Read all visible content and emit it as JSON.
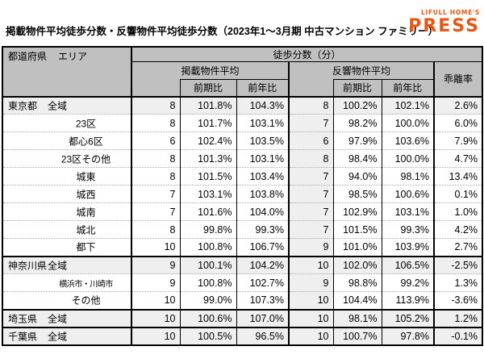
{
  "title": "掲載物件平均徒歩分数・反響物件平均徒歩分数（2023年1～3月期 中古マンション ファミリー）",
  "logo": {
    "brand": "LIFULL HOME'S",
    "press": "PRESS",
    "color": "#E95513"
  },
  "colors": {
    "header_bg": "#c0c0c0",
    "shaded_row_bg": "#efefef",
    "border": "#000000",
    "dotted_divider": "#a8a8a8",
    "brand_orange": "#E95513"
  },
  "chart_data": {
    "type": "table",
    "title": "掲載物件平均徒歩分数・反響物件平均徒歩分数（2023年1～3月期 中古マンション ファミリー）",
    "header": {
      "corner_prefecture": "都道府県",
      "corner_area": "エリア",
      "top": "徒歩分数（分）",
      "group_listed": "掲載物件平均",
      "group_response": "反響物件平均",
      "qoq": "前期比",
      "yoy": "前年比",
      "deviation": "乖離率"
    },
    "column_order": [
      "listed_avg",
      "listed_qoq",
      "listed_yoy",
      "response_avg",
      "response_qoq",
      "response_yoy",
      "deviation"
    ],
    "rows": [
      {
        "prefecture": "東京都",
        "area": "全域",
        "shaded": true,
        "groupStart": false,
        "smallArea": false,
        "values": [
          "8",
          "101.8%",
          "104.3%",
          "8",
          "100.2%",
          "102.1%",
          "2.6%"
        ]
      },
      {
        "prefecture": "",
        "area": "23区",
        "shaded": false,
        "groupStart": false,
        "smallArea": false,
        "values": [
          "8",
          "101.7%",
          "103.1%",
          "7",
          "98.2%",
          "100.0%",
          "6.0%"
        ]
      },
      {
        "prefecture": "",
        "area": "都心6区",
        "shaded": false,
        "groupStart": false,
        "smallArea": false,
        "values": [
          "6",
          "102.4%",
          "103.5%",
          "6",
          "97.9%",
          "103.6%",
          "7.9%"
        ]
      },
      {
        "prefecture": "",
        "area": "23区その他",
        "shaded": false,
        "groupStart": false,
        "smallArea": false,
        "values": [
          "8",
          "101.3%",
          "103.1%",
          "8",
          "98.4%",
          "100.0%",
          "4.7%"
        ]
      },
      {
        "prefecture": "",
        "area": "城東",
        "shaded": false,
        "groupStart": false,
        "smallArea": false,
        "values": [
          "8",
          "101.5%",
          "103.4%",
          "7",
          "94.0%",
          "98.1%",
          "13.4%"
        ]
      },
      {
        "prefecture": "",
        "area": "城西",
        "shaded": false,
        "groupStart": false,
        "smallArea": false,
        "values": [
          "7",
          "103.1%",
          "103.8%",
          "7",
          "98.5%",
          "100.6%",
          "0.1%"
        ]
      },
      {
        "prefecture": "",
        "area": "城南",
        "shaded": false,
        "groupStart": false,
        "smallArea": false,
        "values": [
          "7",
          "101.6%",
          "104.0%",
          "7",
          "102.9%",
          "103.1%",
          "1.0%"
        ]
      },
      {
        "prefecture": "",
        "area": "城北",
        "shaded": false,
        "groupStart": false,
        "smallArea": false,
        "values": [
          "8",
          "99.8%",
          "99.3%",
          "7",
          "101.5%",
          "99.3%",
          "4.2%"
        ]
      },
      {
        "prefecture": "",
        "area": "都下",
        "shaded": false,
        "groupStart": false,
        "smallArea": false,
        "values": [
          "10",
          "100.8%",
          "106.7%",
          "9",
          "101.0%",
          "103.9%",
          "2.7%"
        ]
      },
      {
        "prefecture": "神奈川県",
        "area": "全域",
        "shaded": true,
        "groupStart": true,
        "smallArea": false,
        "values": [
          "9",
          "100.1%",
          "104.2%",
          "10",
          "102.0%",
          "106.5%",
          "-2.5%"
        ]
      },
      {
        "prefecture": "",
        "area": "横浜市・川崎市",
        "shaded": false,
        "groupStart": false,
        "smallArea": true,
        "values": [
          "9",
          "100.8%",
          "102.7%",
          "9",
          "98.8%",
          "99.2%",
          "1.3%"
        ]
      },
      {
        "prefecture": "",
        "area": "その他",
        "shaded": false,
        "groupStart": false,
        "smallArea": false,
        "values": [
          "10",
          "99.0%",
          "107.3%",
          "10",
          "104.4%",
          "113.9%",
          "-3.6%"
        ]
      },
      {
        "prefecture": "埼玉県",
        "area": "全域",
        "shaded": true,
        "groupStart": true,
        "smallArea": false,
        "values": [
          "10",
          "100.6%",
          "107.0%",
          "10",
          "98.1%",
          "105.2%",
          "1.2%"
        ]
      },
      {
        "prefecture": "千葉県",
        "area": "全域",
        "shaded": true,
        "groupStart": true,
        "smallArea": false,
        "values": [
          "10",
          "100.5%",
          "96.5%",
          "10",
          "100.7%",
          "97.8%",
          "-0.1%"
        ]
      }
    ]
  }
}
